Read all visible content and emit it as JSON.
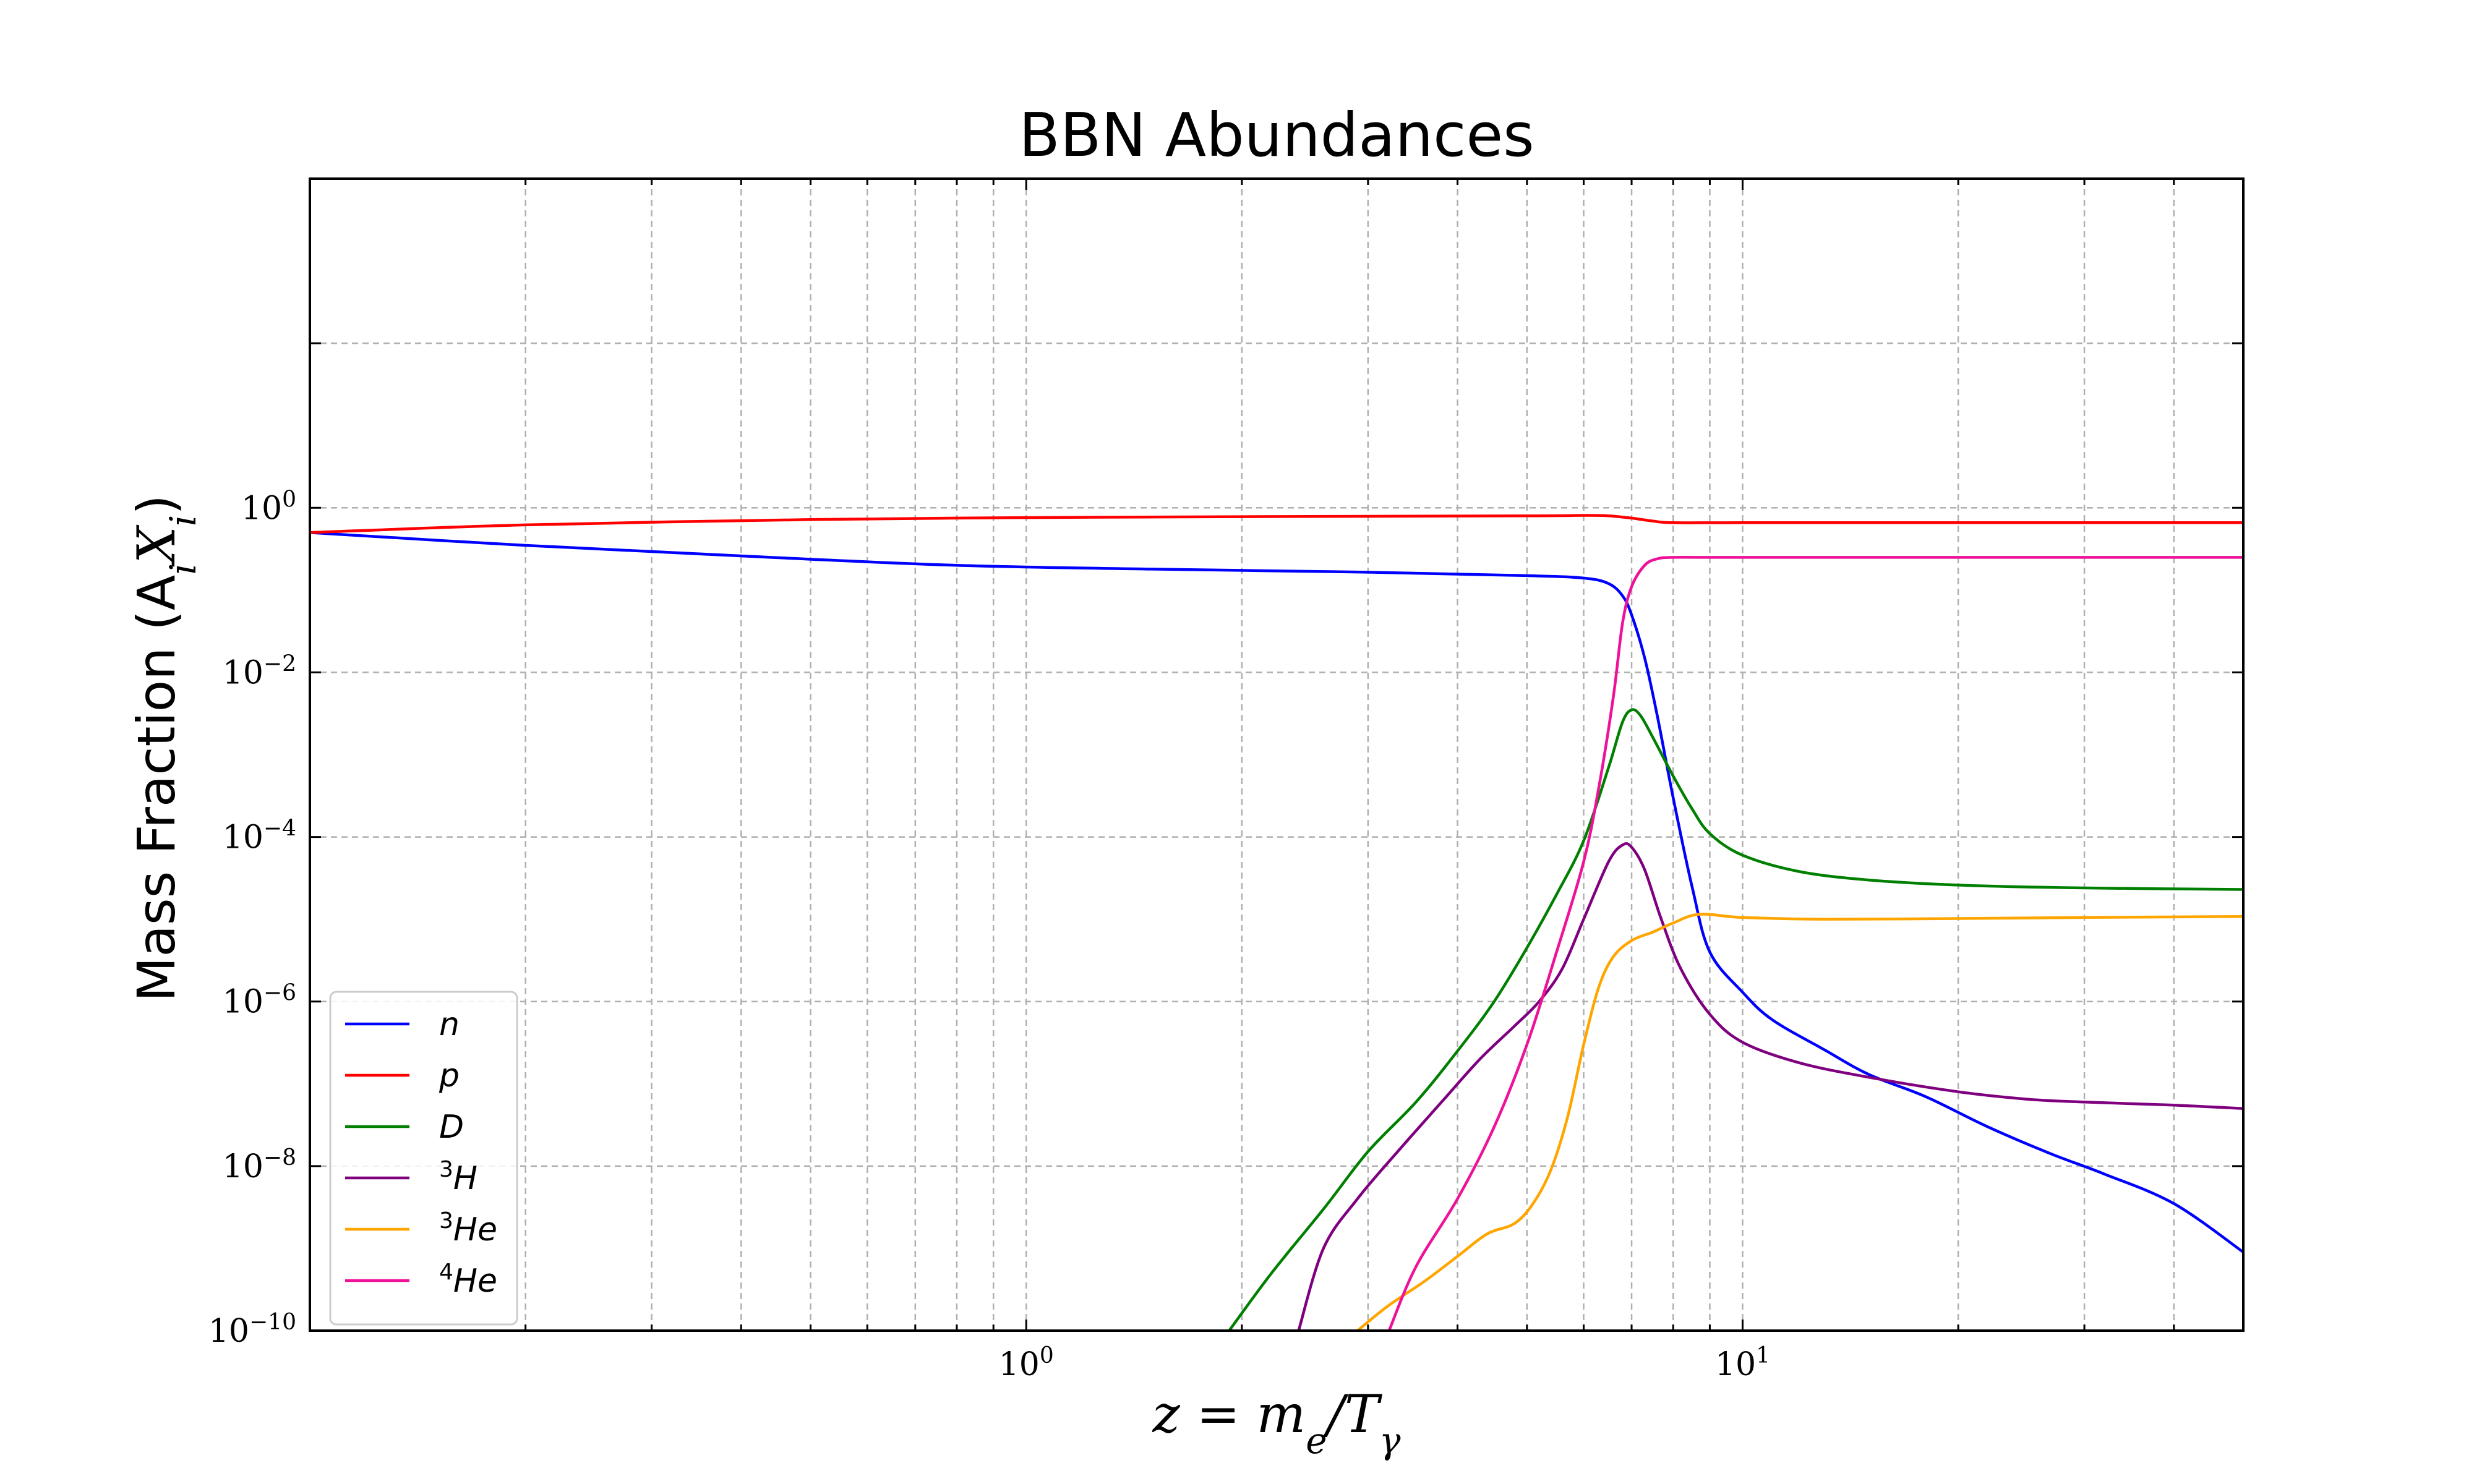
{
  "chart_data": {
    "type": "line",
    "title": "BBN Abundances",
    "xlabel": {
      "main": "z = m",
      "sub1": "e",
      "mid": "/T",
      "sub2": "γ"
    },
    "ylabel": {
      "main": "Mass Fraction (A",
      "sub1": "i",
      "mid": "X",
      "sub2": "i",
      "end": ")"
    },
    "x_scale": "log",
    "y_scale": "log",
    "xlim": [
      0.1,
      50
    ],
    "ylim": [
      1e-10,
      10000
    ],
    "grid": true,
    "legend_position": "lower-left",
    "x_ticks": [
      {
        "base": "10",
        "exp": "0",
        "value": 1
      },
      {
        "base": "10",
        "exp": "1",
        "value": 10
      }
    ],
    "y_ticks": [
      {
        "base": "10",
        "exp": "0",
        "value": 1
      },
      {
        "base": "10",
        "exp": "−2",
        "value": 0.01
      },
      {
        "base": "10",
        "exp": "−4",
        "value": 0.0001
      },
      {
        "base": "10",
        "exp": "−6",
        "value": 1e-06
      },
      {
        "base": "10",
        "exp": "−8",
        "value": 1e-08
      },
      {
        "base": "10",
        "exp": "−10",
        "value": 1e-10
      }
    ],
    "series": [
      {
        "name": "n",
        "sup": "",
        "color": "#0000ff",
        "x": [
          0.1,
          0.2,
          0.4,
          0.8,
          1.5,
          3,
          5,
          6,
          6.5,
          6.8,
          7,
          7.3,
          7.6,
          8,
          8.5,
          9,
          10,
          11,
          13,
          15,
          18,
          22,
          27,
          32,
          40,
          50
        ],
        "y": [
          0.5,
          0.35,
          0.26,
          0.2,
          0.18,
          0.165,
          0.15,
          0.14,
          0.12,
          0.085,
          0.05,
          0.015,
          0.003,
          0.0003,
          2.5e-05,
          4e-06,
          1.3e-06,
          6e-07,
          2.6e-07,
          1.3e-07,
          7e-08,
          3e-08,
          1.4e-08,
          8e-09,
          3.5e-09,
          9e-10
        ]
      },
      {
        "name": "p",
        "sup": "",
        "color": "#ff0000",
        "x": [
          0.1,
          0.2,
          0.5,
          1,
          2,
          5,
          6,
          6.5,
          7,
          7.5,
          8,
          10,
          20,
          50
        ],
        "y": [
          0.5,
          0.62,
          0.72,
          0.76,
          0.78,
          0.8,
          0.81,
          0.8,
          0.75,
          0.69,
          0.66,
          0.66,
          0.66,
          0.66
        ]
      },
      {
        "name": "D",
        "sup": "",
        "color": "#007f00",
        "x": [
          1.92,
          2.2,
          2.6,
          3,
          3.5,
          4,
          4.5,
          5,
          5.5,
          6,
          6.5,
          6.8,
          7,
          7.2,
          7.5,
          8,
          8.5,
          9,
          10,
          12,
          15,
          20,
          30,
          50
        ],
        "y": [
          1e-10,
          5e-10,
          3e-09,
          1.5e-08,
          6e-08,
          2.5e-07,
          1e-06,
          4.5e-06,
          2e-05,
          9e-05,
          0.0007,
          0.0025,
          0.0035,
          0.003,
          0.0016,
          0.00055,
          0.00022,
          0.00011,
          6e-05,
          3.8e-05,
          3e-05,
          2.6e-05,
          2.4e-05,
          2.3e-05
        ]
      },
      {
        "name": "H",
        "sup": "3",
        "color": "#7f007f",
        "x": [
          2.4,
          2.6,
          2.9,
          3.3,
          3.8,
          4.3,
          4.8,
          5.2,
          5.6,
          6,
          6.5,
          6.8,
          7,
          7.3,
          7.7,
          8.2,
          9,
          10,
          12,
          15,
          20,
          25,
          30,
          40,
          50
        ],
        "y": [
          1e-10,
          1e-09,
          4e-09,
          1.5e-08,
          6e-08,
          2e-07,
          5e-07,
          1e-06,
          2.5e-06,
          1e-05,
          5e-05,
          8e-05,
          7.5e-05,
          4e-05,
          1e-05,
          2.5e-06,
          7e-07,
          3.2e-07,
          1.8e-07,
          1.2e-07,
          8e-08,
          6.5e-08,
          6e-08,
          5.5e-08,
          5e-08
        ]
      },
      {
        "name": "He",
        "sup": "3",
        "color": "#ffa500",
        "x": [
          2.9,
          3.2,
          3.6,
          4,
          4.4,
          4.8,
          5.1,
          5.4,
          5.7,
          6,
          6.3,
          6.6,
          7,
          7.5,
          8,
          8.7,
          10,
          13,
          20,
          30,
          50
        ],
        "y": [
          1e-10,
          2e-10,
          4e-10,
          8e-10,
          1.5e-09,
          2e-09,
          3.5e-09,
          9e-09,
          4e-08,
          3e-07,
          1.5e-06,
          3.5e-06,
          5.5e-06,
          7e-06,
          9e-06,
          1.15e-05,
          1.05e-05,
          1e-05,
          1.02e-05,
          1.05e-05,
          1.08e-05
        ]
      },
      {
        "name": "He",
        "sup": "4",
        "color": "#ee1199",
        "x": [
          3.21,
          3.5,
          4,
          4.5,
          5,
          5.5,
          6,
          6.3,
          6.6,
          6.8,
          7,
          7.3,
          7.6,
          8,
          9,
          10,
          20,
          50
        ],
        "y": [
          1e-10,
          6e-10,
          4e-09,
          3e-08,
          3e-07,
          4e-06,
          5e-05,
          0.0004,
          0.005,
          0.04,
          0.11,
          0.2,
          0.24,
          0.25,
          0.25,
          0.25,
          0.25,
          0.25
        ]
      }
    ]
  }
}
